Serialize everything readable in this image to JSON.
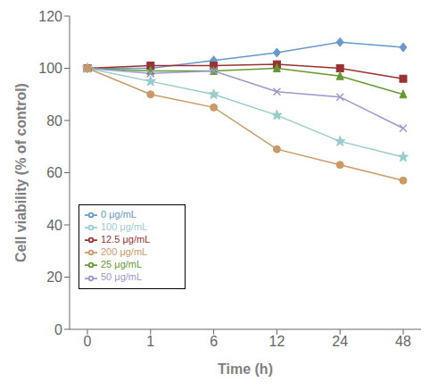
{
  "chart_data": {
    "type": "line",
    "x_label": "Time (h)",
    "y_label": "Cell viability (% of control)",
    "categories": [
      "0",
      "1",
      "6",
      "12",
      "24",
      "48"
    ],
    "series": [
      {
        "name": "0 μg/mL",
        "color": "#6699CC",
        "marker": "diamond",
        "values": [
          100,
          100,
          103,
          106,
          110,
          108
        ]
      },
      {
        "name": "12.5 μg/mL",
        "color": "#993333",
        "marker": "square",
        "values": [
          100,
          101,
          101,
          101.5,
          100,
          96
        ]
      },
      {
        "name": "25 μg/mL",
        "color": "#669933",
        "marker": "triangle",
        "values": [
          100,
          99,
          99,
          100,
          97,
          90
        ]
      },
      {
        "name": "50 μg/mL",
        "color": "#9999CC",
        "marker": "x",
        "values": [
          100,
          98,
          99,
          91,
          89,
          77
        ]
      },
      {
        "name": "100 μg/mL",
        "color": "#99CCCC",
        "marker": "star",
        "values": [
          100,
          95,
          90,
          82,
          72,
          66
        ]
      },
      {
        "name": "200 μg/mL",
        "color": "#CC9966",
        "marker": "circle",
        "values": [
          100,
          90,
          85,
          69,
          63,
          57
        ]
      }
    ],
    "ylim": [
      0,
      120
    ],
    "yticks": [
      0,
      20,
      40,
      60,
      80,
      100,
      120
    ],
    "grid": false,
    "legend": "lower left"
  }
}
